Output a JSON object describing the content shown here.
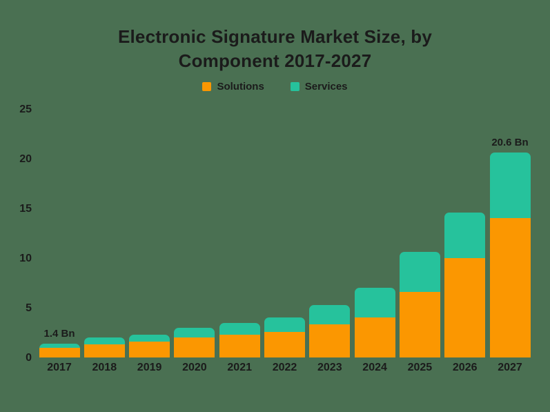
{
  "title": {
    "line1": "Electronic Signature Market Size, by",
    "line2": "Component 2017-2027"
  },
  "colors": {
    "background": "#4A7052",
    "text": "#1B1B1B",
    "solutions": "#FB9701",
    "services": "#26C29C"
  },
  "chart_data": {
    "type": "bar",
    "stacked": true,
    "title": "Electronic Signature Market Size, by Component 2017-2027",
    "unit": "Bn",
    "categories": [
      "2017",
      "2018",
      "2019",
      "2020",
      "2021",
      "2022",
      "2023",
      "2024",
      "2025",
      "2026",
      "2027"
    ],
    "series": [
      {
        "name": "Solutions",
        "color": "#FB9701",
        "values": [
          1.0,
          1.3,
          1.6,
          2.0,
          2.3,
          2.6,
          3.3,
          4.0,
          6.6,
          10.0,
          14.0
        ]
      },
      {
        "name": "Services",
        "color": "#26C29C",
        "values": [
          0.4,
          0.7,
          0.7,
          1.0,
          1.2,
          1.4,
          2.0,
          3.0,
          4.0,
          4.6,
          6.6
        ]
      }
    ],
    "totals": [
      1.4,
      2.0,
      2.3,
      3.0,
      3.5,
      4.0,
      5.3,
      7.0,
      10.6,
      14.6,
      20.6
    ],
    "annotations": [
      {
        "category": "2017",
        "text": "1.4 Bn"
      },
      {
        "category": "2027",
        "text": "20.6 Bn"
      }
    ],
    "ylim": [
      0,
      25
    ],
    "yticks": [
      0,
      5,
      10,
      15,
      20,
      25
    ],
    "grid": false,
    "legend_position": "top"
  }
}
